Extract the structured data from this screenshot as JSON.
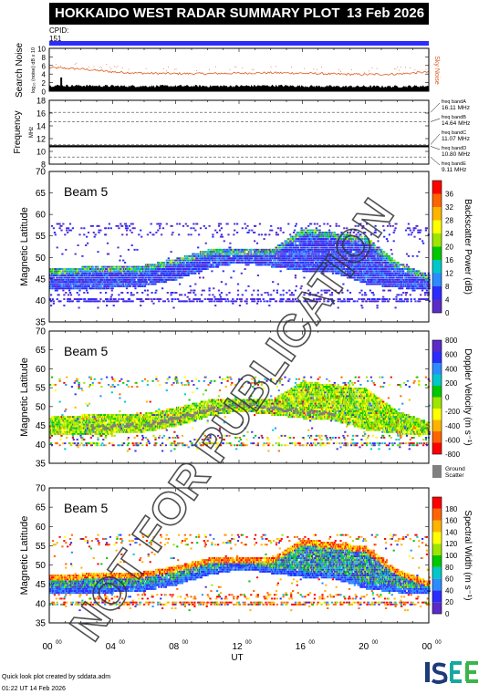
{
  "header": {
    "title": "HOKKAIDO WEST RADAR SUMMARY PLOT",
    "date": "13 Feb 2026",
    "cpid_label": "CPID:",
    "cpid_value": "151"
  },
  "watermark": "NOT FOR PUBLICATION",
  "footer": {
    "line1": "Quick look plot created by sddata.adm",
    "line2": "01:22 UT 14 Feb 2026"
  },
  "logo": "ISEE",
  "colors": {
    "sky_noise": "#e05a1e",
    "search_noise": "#000000",
    "cpid_bar": "#2c2cff",
    "ground_scatter": "#808080"
  },
  "chart_data": [
    {
      "type": "line",
      "name": "noise-panel",
      "ylabel": "Search Noise",
      "ylabel_sub": "log₁₀ (noise) dB x 10",
      "right_label": "Sky Noise",
      "yticks": [
        0,
        2,
        4,
        6,
        8,
        10
      ],
      "ylim": [
        0,
        10
      ],
      "x": [
        0,
        2,
        4,
        6,
        8,
        10,
        12,
        14,
        16,
        18,
        20,
        22,
        24
      ],
      "series": [
        {
          "name": "Sky Noise",
          "values": [
            5.5,
            5.2,
            4.5,
            4.2,
            4.1,
            4.1,
            4.2,
            4.3,
            4.2,
            4.0,
            3.9,
            4.0,
            4.5
          ]
        },
        {
          "name": "Search Noise",
          "values": [
            1.0,
            1.0,
            0.9,
            0.9,
            0.9,
            0.9,
            0.9,
            1.0,
            0.9,
            0.8,
            0.8,
            0.8,
            0.9
          ]
        }
      ]
    },
    {
      "type": "line",
      "name": "frequency-panel",
      "ylabel": "Frequency",
      "ylabel_sub": "MHz",
      "yticks": [
        8,
        10,
        12,
        14,
        16,
        18
      ],
      "ylim": [
        8,
        18
      ],
      "bands": [
        {
          "label": "freq bandA",
          "freq": "16.11 MHz",
          "value": 16.11
        },
        {
          "label": "freq bandB",
          "freq": "14.64 MHz",
          "value": 14.64
        },
        {
          "label": "freq bandC",
          "freq": "11.07 MHz",
          "value": 11.07
        },
        {
          "label": "freq bandD",
          "freq": "10.80 MHz",
          "value": 10.8
        },
        {
          "label": "freq bandE",
          "freq": "9.11 MHz",
          "value": 9.11
        }
      ],
      "operating_frequency": 10.8
    },
    {
      "type": "heatmap",
      "name": "power-panel",
      "beam_label": "Beam  5",
      "ylabel": "Magnetic Latitude",
      "yticks": [
        35,
        40,
        45,
        50,
        55,
        60,
        65,
        70
      ],
      "ylim": [
        35,
        70
      ],
      "colorbar_label": "Backscatter Power (dB)",
      "colorbar_ticks": [
        "0",
        "4",
        "8",
        "12",
        "16",
        "20",
        "24",
        "28",
        "32",
        "36"
      ],
      "colorbar_colors": [
        "#5a2bc8",
        "#2c2cff",
        "#2b8cff",
        "#00c8c8",
        "#00c800",
        "#9ee600",
        "#ffff00",
        "#ffb400",
        "#ff6400",
        "#ff0000"
      ],
      "echo_band": {
        "x": [
          0,
          2,
          4,
          6,
          8,
          10,
          12,
          14,
          16,
          18,
          20,
          22,
          24
        ],
        "lower": [
          43.0,
          43.0,
          43.0,
          43.5,
          45.0,
          47.5,
          49.0,
          48.0,
          47.0,
          46.5,
          44.0,
          43.0,
          43.0
        ],
        "upper": [
          47.5,
          48.0,
          48.0,
          48.5,
          50.0,
          52.0,
          52.5,
          52.0,
          57.0,
          56.0,
          55.0,
          49.0,
          46.0
        ]
      }
    },
    {
      "type": "heatmap",
      "name": "velocity-panel",
      "beam_label": "Beam  5",
      "ylabel": "Magnetic Latitude",
      "yticks": [
        35,
        40,
        45,
        50,
        55,
        60,
        65,
        70
      ],
      "ylim": [
        35,
        70
      ],
      "colorbar_label": "Doppler Velocity (m s⁻¹)",
      "colorbar_ticks": [
        "-800",
        "-600",
        "-400",
        "-200",
        "0",
        "200",
        "400",
        "600",
        "800"
      ],
      "colorbar_colors": [
        "#ff0000",
        "#ff6400",
        "#ffb400",
        "#ffff00",
        "#9ee600",
        "#00c800",
        "#00c8c8",
        "#2b8cff",
        "#2c2cff",
        "#5a2bc8"
      ],
      "ground_scatter_label": "Ground Scatter"
    },
    {
      "type": "heatmap",
      "name": "width-panel",
      "beam_label": "Beam  5",
      "ylabel": "Magnetic Latitude",
      "yticks": [
        35,
        40,
        45,
        50,
        55,
        60,
        65,
        70
      ],
      "ylim": [
        35,
        70
      ],
      "colorbar_label": "Spectral Width (m s⁻¹)",
      "colorbar_ticks": [
        "0",
        "20",
        "40",
        "60",
        "80",
        "100",
        "120",
        "140",
        "160",
        "180"
      ],
      "colorbar_colors": [
        "#5a2bc8",
        "#2c2cff",
        "#2b8cff",
        "#00c8c8",
        "#00c800",
        "#9ee600",
        "#ffff00",
        "#ffb400",
        "#ff6400",
        "#ff0000"
      ],
      "xlabel": "UT",
      "xticks": [
        "00",
        "04",
        "08",
        "12",
        "16",
        "20",
        "00"
      ],
      "xtick_sup": "00",
      "xlim": [
        0,
        24
      ]
    }
  ]
}
